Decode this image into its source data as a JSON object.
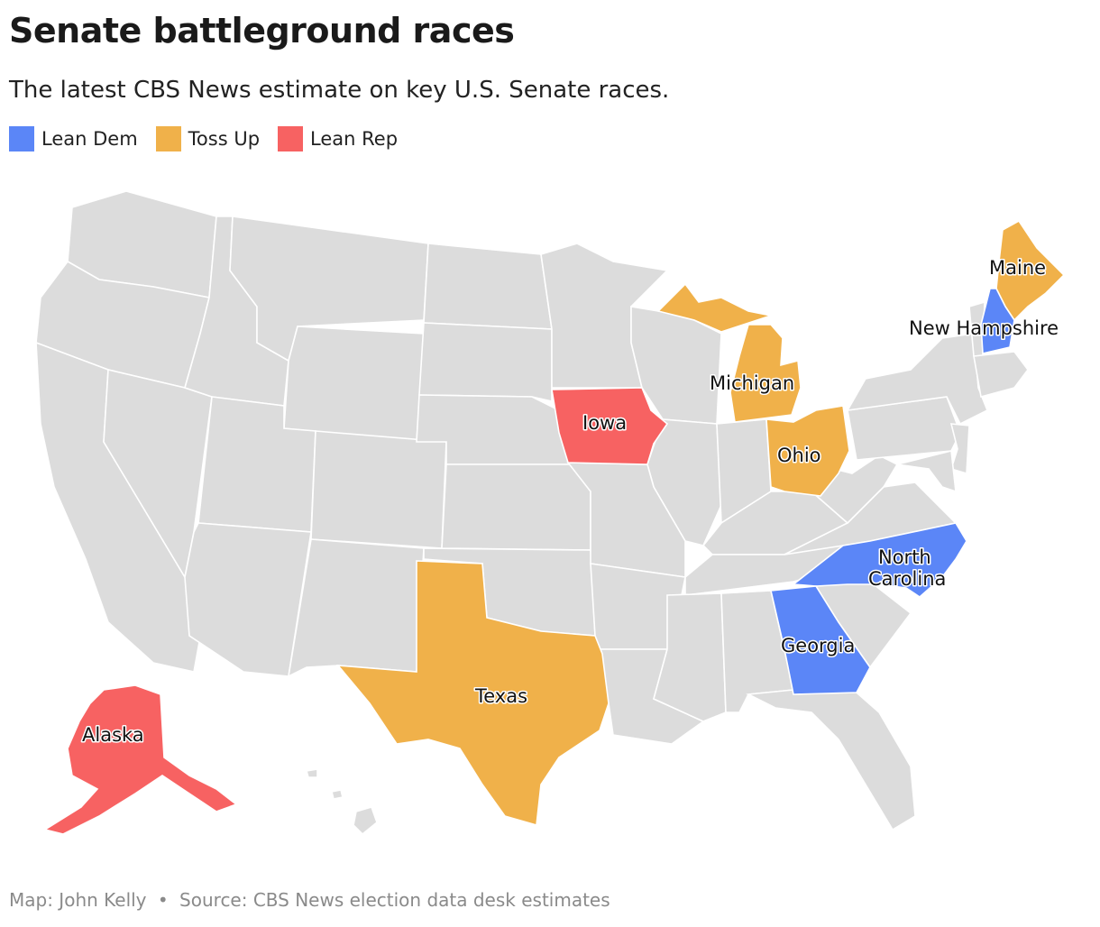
{
  "header": {
    "title": "Senate battleground races",
    "subtitle": "The latest CBS News estimate on key U.S. Senate races."
  },
  "legend": [
    {
      "label": "Lean Dem",
      "color": "#5b86f7"
    },
    {
      "label": "Toss Up",
      "color": "#f0b14a"
    },
    {
      "label": "Lean Rep",
      "color": "#f76262"
    }
  ],
  "map": {
    "base_color": "#dcdcdc",
    "races": [
      {
        "state": "Maine",
        "rating": "Toss Up"
      },
      {
        "state": "New Hampshire",
        "rating": "Lean Dem"
      },
      {
        "state": "Michigan",
        "rating": "Toss Up"
      },
      {
        "state": "Iowa",
        "rating": "Lean Rep"
      },
      {
        "state": "Ohio",
        "rating": "Toss Up"
      },
      {
        "state": "North Carolina",
        "rating": "Lean Dem"
      },
      {
        "state": "Georgia",
        "rating": "Lean Dem"
      },
      {
        "state": "Texas",
        "rating": "Toss Up"
      },
      {
        "state": "Alaska",
        "rating": "Lean Rep"
      }
    ],
    "labels": {
      "maine": "Maine",
      "new_hampshire": "New Hampshire",
      "michigan": "Michigan",
      "iowa": "Iowa",
      "ohio": "Ohio",
      "north_carolina_1": "North",
      "north_carolina_2": "Carolina",
      "georgia": "Georgia",
      "texas": "Texas",
      "alaska": "Alaska"
    }
  },
  "footer": {
    "credit": "Map: John Kelly",
    "separator": "•",
    "source": "Source: CBS News election data desk estimates"
  }
}
